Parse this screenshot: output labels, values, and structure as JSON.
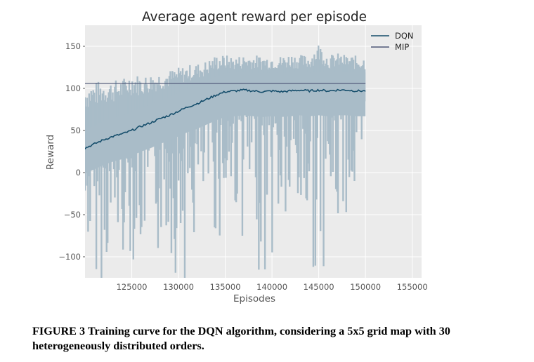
{
  "chart_data": {
    "type": "line",
    "title": "Average agent reward per episode",
    "xlabel": "Episodes",
    "ylabel": "Reward",
    "xlim": [
      120000,
      156000
    ],
    "ylim": [
      -125,
      175
    ],
    "xticks": [
      125000,
      130000,
      135000,
      140000,
      145000,
      150000,
      155000
    ],
    "yticks": [
      -100,
      -50,
      0,
      50,
      100,
      150
    ],
    "x_tick_labels": [
      "125000",
      "130000",
      "135000",
      "140000",
      "145000",
      "150000",
      "155000"
    ],
    "y_tick_labels": [
      "−100",
      "−50",
      "0",
      "50",
      "100",
      "150"
    ],
    "grid": true,
    "legend_position": "top-right",
    "series": [
      {
        "name": "DQN",
        "x": [
          120000,
          121000,
          122000,
          123000,
          124000,
          125000,
          126000,
          127000,
          128000,
          129000,
          130000,
          131000,
          132000,
          133000,
          134000,
          135000,
          136000,
          137000,
          138000,
          139000,
          140000,
          141000,
          142000,
          143000,
          144000,
          145000,
          146000,
          147000,
          148000,
          149000,
          150000
        ],
        "y": [
          29,
          34,
          39,
          43,
          46,
          50,
          55,
          59,
          64,
          68,
          73,
          78,
          82,
          87,
          92,
          96,
          97,
          98,
          97,
          96,
          97,
          96,
          97,
          98,
          97,
          98,
          97,
          98,
          98,
          97,
          97
        ],
        "band_min": [
          -90,
          -110,
          -125,
          -100,
          -90,
          -95,
          -110,
          -80,
          -100,
          -85,
          -125,
          -125,
          -90,
          -55,
          -70,
          -80,
          -55,
          -75,
          -80,
          -125,
          -100,
          -85,
          -90,
          -80,
          -95,
          -125,
          -80,
          -85,
          -40,
          -65,
          -70
        ],
        "band_max": [
          105,
          108,
          110,
          110,
          112,
          120,
          115,
          118,
          120,
          122,
          125,
          128,
          130,
          133,
          140,
          140,
          138,
          140,
          140,
          139,
          140,
          139,
          142,
          140,
          140,
          155,
          140,
          142,
          140,
          139,
          138
        ],
        "color": "#154d6b",
        "band_color": "#a9bcc8"
      },
      {
        "name": "MIP",
        "x": [
          120000,
          150000
        ],
        "y": [
          106,
          106
        ],
        "color": "#4a5372"
      }
    ]
  },
  "caption": "FIGURE 3 Training curve for the DQN algorithm, considering a 5x5 grid map with 30 heterogeneously distributed orders.",
  "colors": {
    "plot_background": "#ebebeb",
    "grid": "#ffffff",
    "text": "#555555",
    "title": "#222222"
  }
}
